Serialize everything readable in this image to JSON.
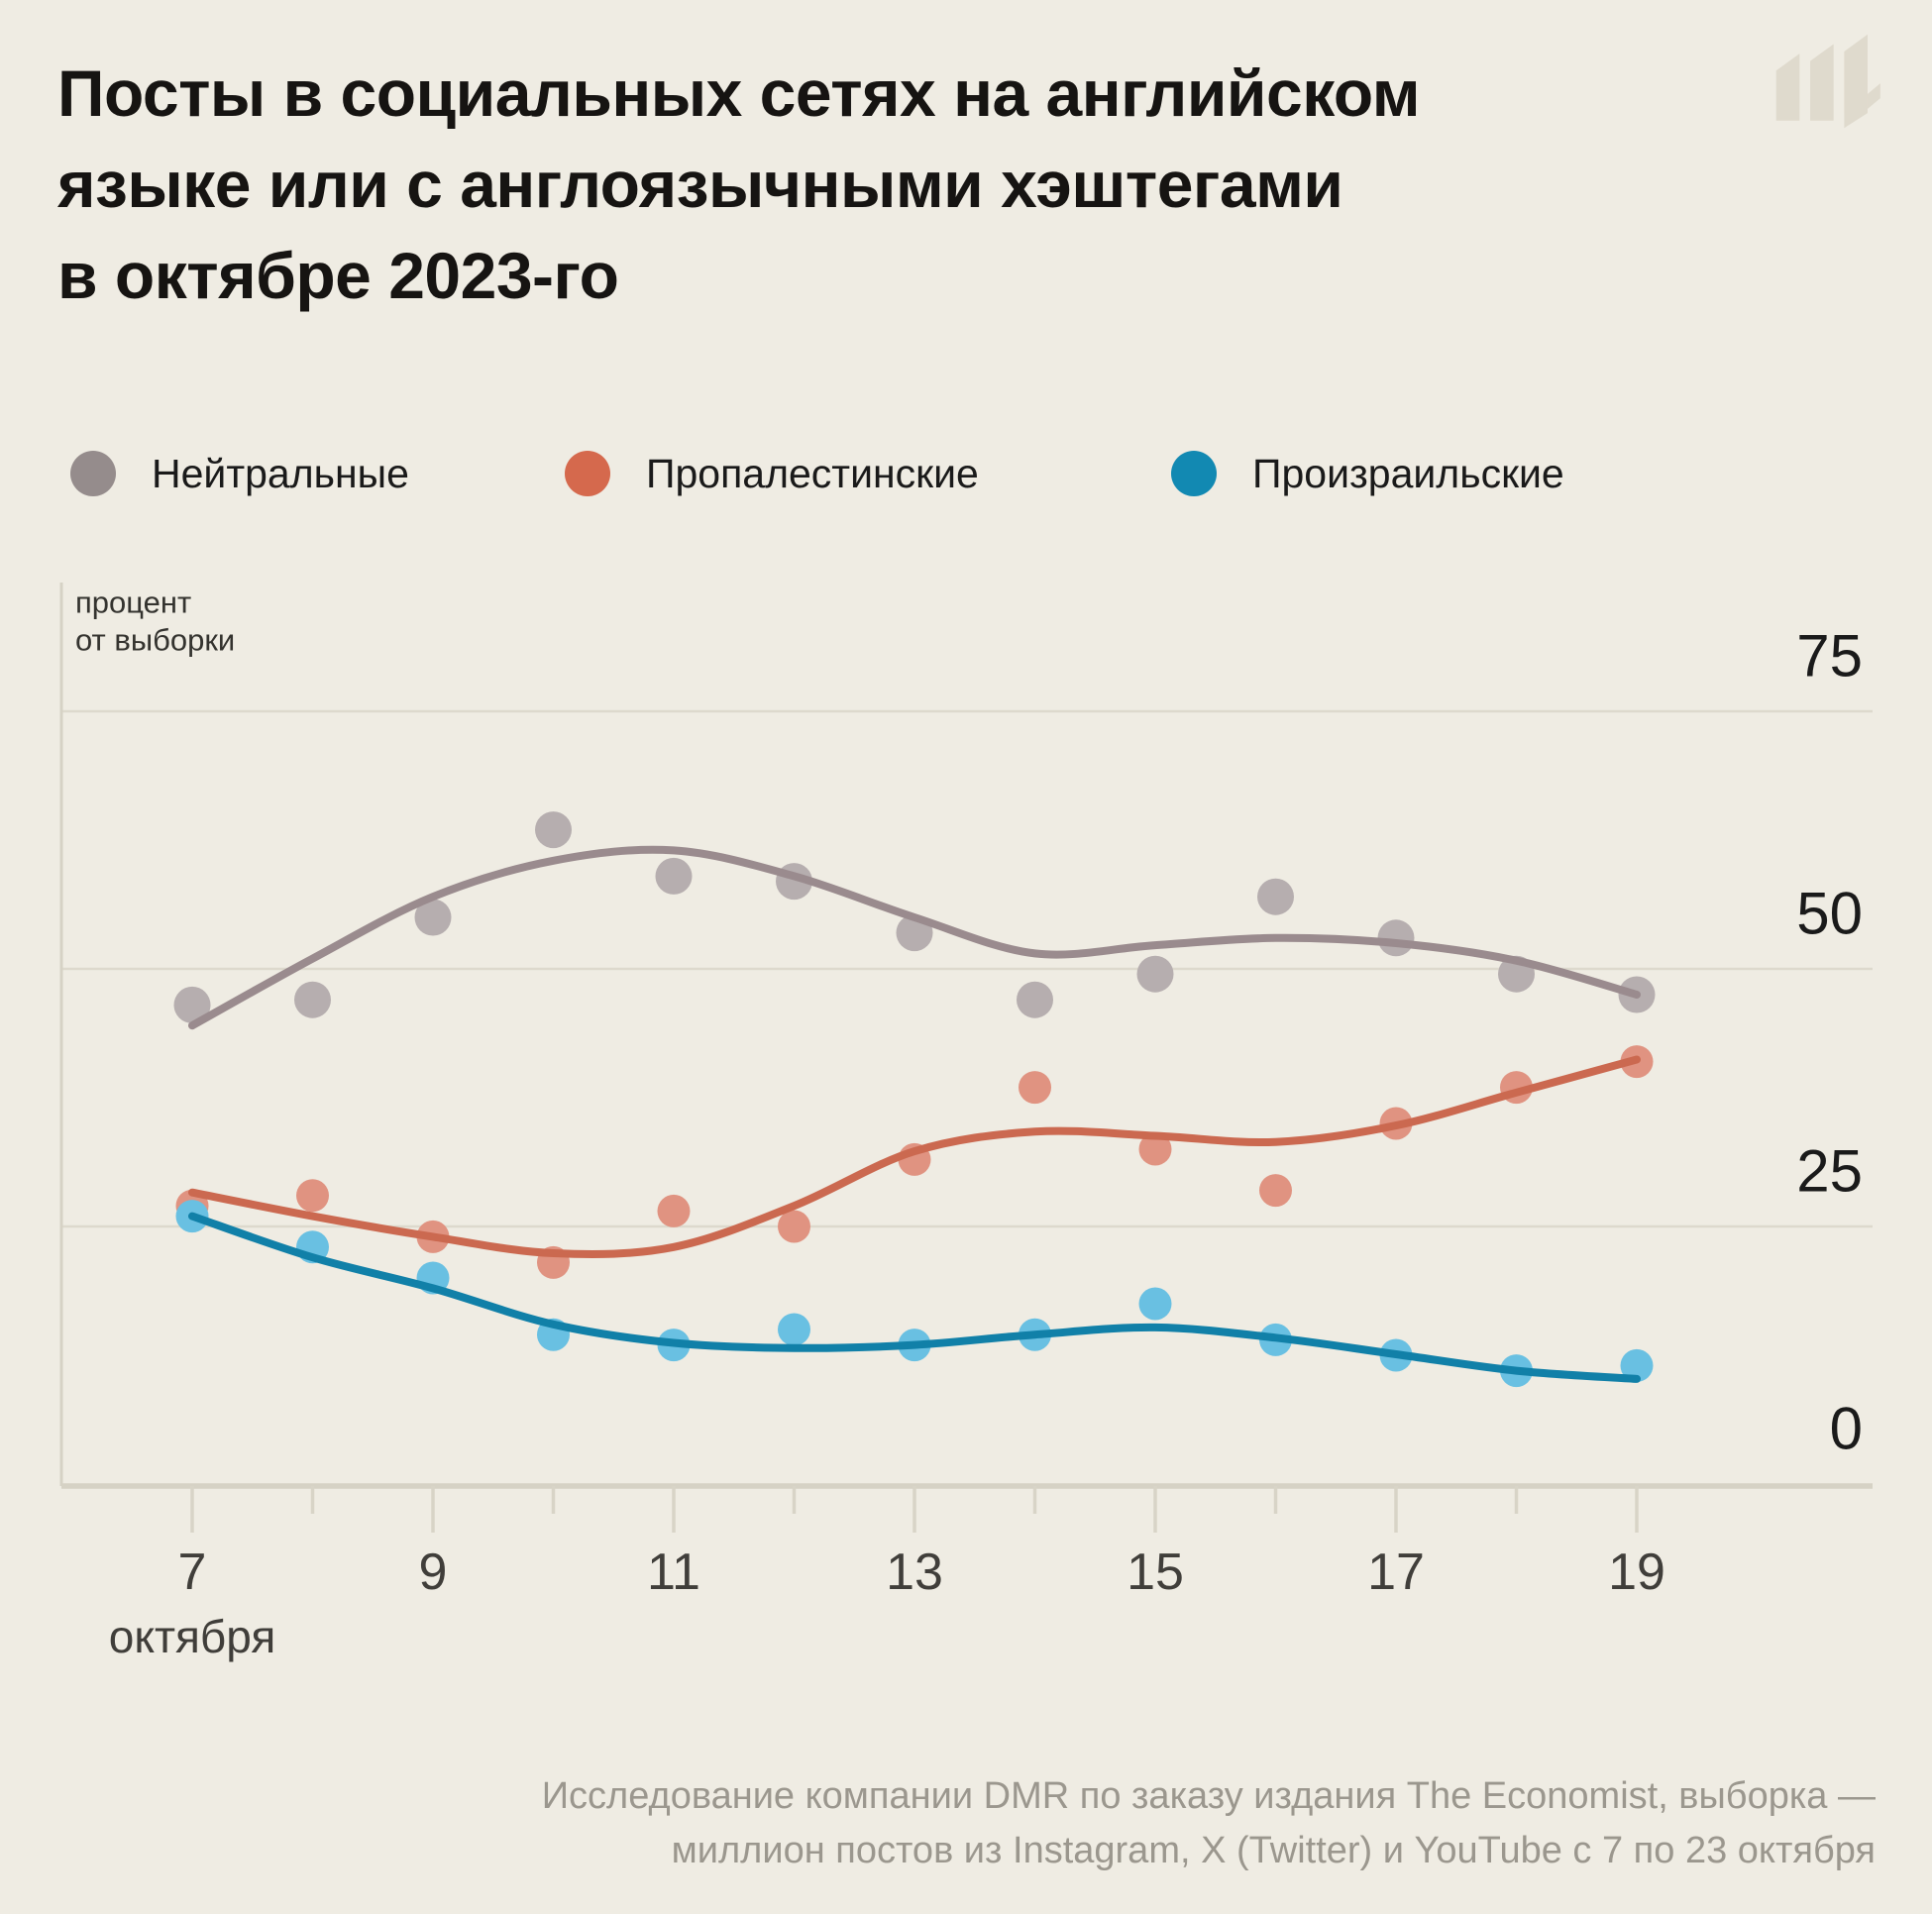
{
  "title": {
    "lines": [
      "Посты в социальных сетях на английском",
      "языке или с англоязычными хэштегами",
      "в октябре 2023-го"
    ]
  },
  "logo": {
    "name": "meduza-m-logo",
    "color": "#DFDACD"
  },
  "legend": [
    {
      "label": "Нейтральные",
      "color": "#958C8C"
    },
    {
      "label": "Пропалестинские",
      "color": "#D5694D"
    },
    {
      "label": "Произраильские",
      "color": "#1289B2"
    }
  ],
  "chart_data": {
    "type": "scatter",
    "subtype": "scatter points with smoothed trend lines",
    "x": [
      7,
      8,
      9,
      10,
      11,
      12,
      13,
      14,
      15,
      16,
      17,
      18,
      19
    ],
    "x_axis": {
      "labeled_ticks": [
        7,
        9,
        11,
        13,
        15,
        17,
        19
      ],
      "minor_ticks": [
        8,
        10,
        12,
        14,
        16,
        18
      ],
      "unit_label": "октября",
      "range_shown": [
        6,
        21
      ]
    },
    "y_axis": {
      "label_lines": [
        "процент",
        "от выборки"
      ],
      "ticks": [
        0,
        25,
        50,
        75
      ],
      "range_shown": [
        0,
        87
      ],
      "grid": true,
      "tick_side": "right"
    },
    "series": [
      {
        "name": "Нейтральные",
        "line_color": "#9A8B8E",
        "dot_color": "#B6AEAF",
        "dots": [
          46.5,
          47,
          55,
          63.5,
          59,
          58.5,
          53.5,
          47,
          49.5,
          57,
          53,
          49.5,
          47.5
        ],
        "trend": [
          44.5,
          51,
          57,
          60.5,
          61.5,
          59,
          55,
          51.5,
          52.3,
          53,
          52.5,
          50.8,
          47.5
        ]
      },
      {
        "name": "Пропалестинские",
        "line_color": "#CB6950",
        "dot_color": "#E09381",
        "dots": [
          27,
          28,
          24,
          21.5,
          26.5,
          25,
          31.5,
          38.5,
          32.5,
          28.5,
          35,
          38.5,
          41
        ],
        "trend": [
          28.3,
          26,
          24,
          22.4,
          23,
          27,
          32.3,
          34.2,
          33.8,
          33.2,
          34.8,
          38,
          41.2
        ]
      },
      {
        "name": "Произраильские",
        "line_color": "#1180A8",
        "dot_color": "#69C0E2",
        "dots": [
          26,
          23,
          20,
          14.5,
          13.5,
          15,
          13.5,
          14.5,
          17.5,
          14,
          12.5,
          11,
          11.5
        ],
        "trend": [
          26,
          22,
          19,
          15.5,
          13.7,
          13.2,
          13.5,
          14.5,
          15.2,
          14.2,
          12.6,
          11,
          10.2
        ]
      }
    ],
    "colors": {
      "background": "#EFECE3",
      "gridline": "#DDD9CD",
      "axis_line": "#D6D2C5",
      "tick_mark": "#D8D4C7",
      "tick_label": "#403E3A",
      "y_tick_label": "#1A1A1A",
      "unit_label": "#34332F"
    }
  },
  "footer": {
    "lines": [
      "Исследование компании DMR по заказу издания The Economist, выборка —",
      "миллион постов из Instagram, X (Twitter) и YouTube с 7 по 23 октября"
    ]
  }
}
